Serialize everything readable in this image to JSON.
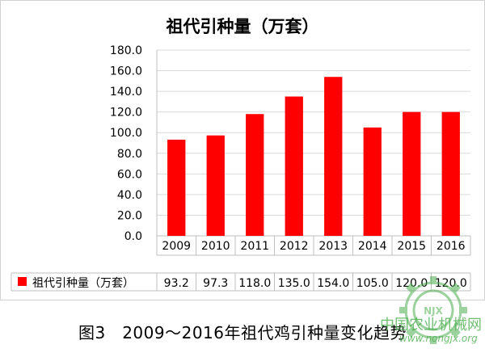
{
  "chart_data": {
    "type": "bar",
    "title": "祖代引种量（万套）",
    "categories": [
      "2009",
      "2010",
      "2011",
      "2012",
      "2013",
      "2014",
      "2015",
      "2016"
    ],
    "series": [
      {
        "name": "祖代引种量（万套）",
        "values": [
          93.2,
          97.3,
          118.0,
          135.0,
          154.0,
          105.0,
          120.0,
          120.0
        ],
        "value_labels": [
          "93.2",
          "97.3",
          "118.0",
          "135.0",
          "154.0",
          "105.0",
          "120.0",
          "120.0"
        ],
        "color": "#ff0000"
      }
    ],
    "ylim": [
      0,
      180
    ],
    "yticks": [
      "0.0",
      "20.0",
      "40.0",
      "60.0",
      "80.0",
      "100.0",
      "120.0",
      "140.0",
      "160.0",
      "180.0"
    ],
    "ytick_values": [
      0,
      20,
      40,
      60,
      80,
      100,
      120,
      140,
      160,
      180
    ],
    "grid": true,
    "legend": "data-table-left"
  },
  "caption": "图3　2009～2016年祖代鸡引种量变化趋势",
  "watermark": {
    "text": "中国农业机械网",
    "url": "www.nongjx.org",
    "logo_text": "NJX"
  }
}
